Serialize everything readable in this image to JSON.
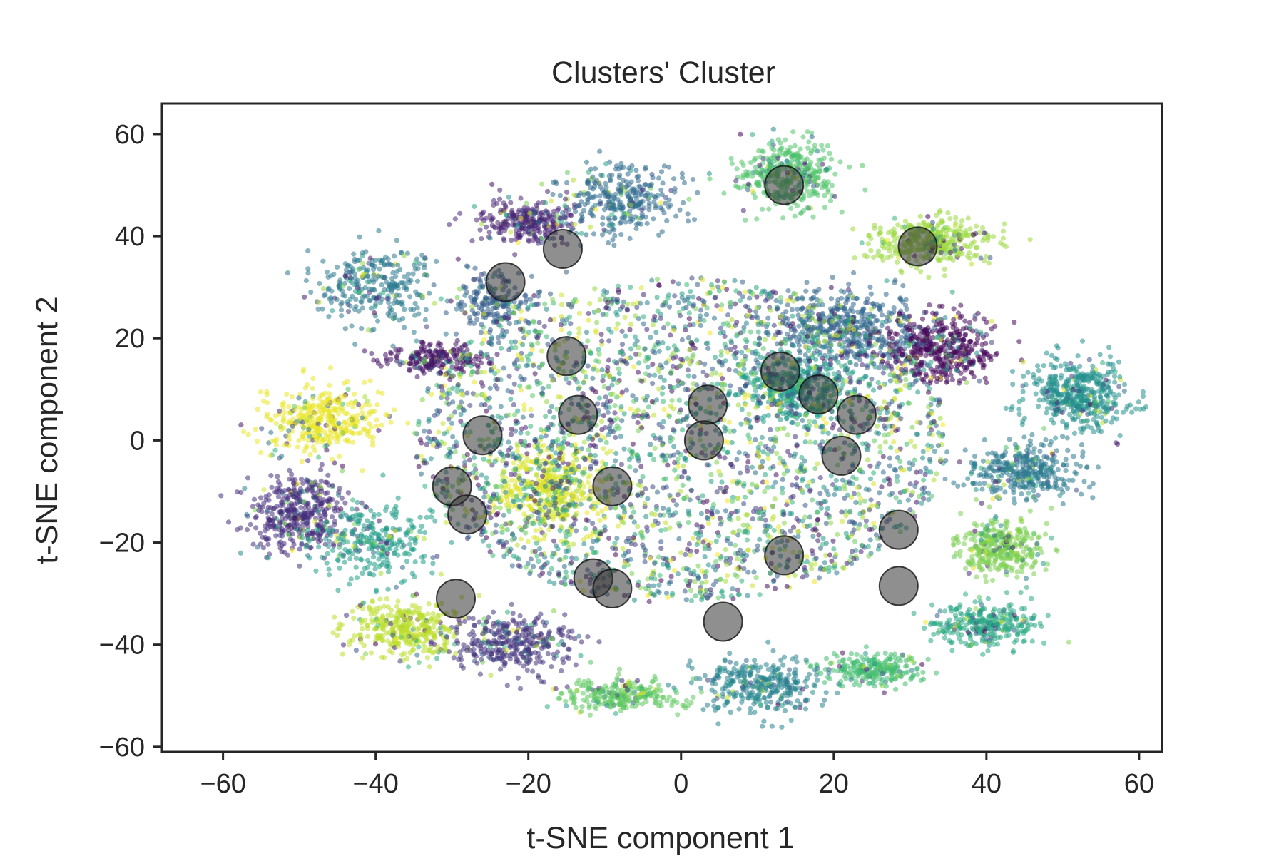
{
  "chart_data": {
    "type": "scatter",
    "title": "Clusters' Cluster",
    "xlabel": "t-SNE component 1",
    "ylabel": "t-SNE component 2",
    "xlim": [
      -68,
      63
    ],
    "ylim": [
      -61,
      66
    ],
    "xticks": [
      -60,
      -40,
      -20,
      0,
      20,
      40,
      60
    ],
    "yticks": [
      -60,
      -40,
      -20,
      0,
      20,
      40,
      60
    ],
    "xtick_labels": [
      "−60",
      "−40",
      "−20",
      "0",
      "20",
      "40",
      "60"
    ],
    "ytick_labels": [
      "−60",
      "−40",
      "−20",
      "0",
      "20",
      "40",
      "60"
    ],
    "grid": false,
    "colormap": "viridis",
    "point_clouds": [
      {
        "cx": -50,
        "cy": -14,
        "rx": 6,
        "ry": 7,
        "t": 0.13,
        "n": 420
      },
      {
        "cx": -47,
        "cy": 4,
        "rx": 7,
        "ry": 6,
        "t": 0.97,
        "n": 380
      },
      {
        "cx": -36,
        "cy": -37,
        "rx": 7,
        "ry": 5,
        "t": 0.9,
        "n": 380
      },
      {
        "cx": -40,
        "cy": 30,
        "rx": 8,
        "ry": 7,
        "t": 0.4,
        "n": 300
      },
      {
        "cx": -20,
        "cy": 43,
        "rx": 6,
        "ry": 4,
        "t": 0.1,
        "n": 280
      },
      {
        "cx": -25,
        "cy": 27,
        "rx": 5,
        "ry": 5,
        "t": 0.3,
        "n": 200
      },
      {
        "cx": -32,
        "cy": 16,
        "rx": 6,
        "ry": 3,
        "t": 0.05,
        "n": 220
      },
      {
        "cx": -17,
        "cy": -10,
        "rx": 6,
        "ry": 8,
        "t": 0.95,
        "n": 450
      },
      {
        "cx": -8,
        "cy": 47,
        "rx": 7,
        "ry": 6,
        "t": 0.35,
        "n": 320
      },
      {
        "cx": 14,
        "cy": 52,
        "rx": 6,
        "ry": 6,
        "t": 0.72,
        "n": 380
      },
      {
        "cx": 33,
        "cy": 39,
        "rx": 7,
        "ry": 4,
        "t": 0.85,
        "n": 380
      },
      {
        "cx": 22,
        "cy": 22,
        "rx": 9,
        "ry": 7,
        "t": 0.33,
        "n": 500
      },
      {
        "cx": 34,
        "cy": 18,
        "rx": 7,
        "ry": 6,
        "t": 0.02,
        "n": 450
      },
      {
        "cx": 52,
        "cy": 9,
        "rx": 6,
        "ry": 6,
        "t": 0.5,
        "n": 450
      },
      {
        "cx": 45,
        "cy": -6,
        "rx": 7,
        "ry": 5,
        "t": 0.4,
        "n": 350
      },
      {
        "cx": 42,
        "cy": -21,
        "rx": 5,
        "ry": 5,
        "t": 0.8,
        "n": 350
      },
      {
        "cx": 40,
        "cy": -36,
        "rx": 6,
        "ry": 4,
        "t": 0.6,
        "n": 300
      },
      {
        "cx": 25,
        "cy": -45,
        "rx": 6,
        "ry": 3,
        "t": 0.7,
        "n": 240
      },
      {
        "cx": 10,
        "cy": -48,
        "rx": 7,
        "ry": 5,
        "t": 0.45,
        "n": 320
      },
      {
        "cx": -8,
        "cy": -50,
        "rx": 7,
        "ry": 3,
        "t": 0.75,
        "n": 260
      },
      {
        "cx": -22,
        "cy": -40,
        "rx": 7,
        "ry": 5,
        "t": 0.15,
        "n": 340
      },
      {
        "cx": -40,
        "cy": -20,
        "rx": 7,
        "ry": 7,
        "t": 0.55,
        "n": 280
      },
      {
        "cx": 15,
        "cy": 10,
        "rx": 7,
        "ry": 6,
        "t": 0.55,
        "n": 400
      },
      {
        "cx": 0,
        "cy": 0,
        "rx": 35,
        "ry": 32,
        "t": -1,
        "n": 3800
      }
    ],
    "centroids": [
      {
        "x": 13.5,
        "y": 50
      },
      {
        "x": 31,
        "y": 38
      },
      {
        "x": -15.5,
        "y": 37.5
      },
      {
        "x": -23,
        "y": 31
      },
      {
        "x": -15,
        "y": 16.5
      },
      {
        "x": 13,
        "y": 13.5
      },
      {
        "x": 18,
        "y": 9
      },
      {
        "x": 23,
        "y": 5
      },
      {
        "x": 3.5,
        "y": 7
      },
      {
        "x": -13.5,
        "y": 5
      },
      {
        "x": -26,
        "y": 1
      },
      {
        "x": 3,
        "y": 0
      },
      {
        "x": 21,
        "y": -3
      },
      {
        "x": -9,
        "y": -9
      },
      {
        "x": -30,
        "y": -9
      },
      {
        "x": -28,
        "y": -14.5
      },
      {
        "x": 28.5,
        "y": -17.5
      },
      {
        "x": 13.5,
        "y": -22.5
      },
      {
        "x": -11.5,
        "y": -27
      },
      {
        "x": -9,
        "y": -29
      },
      {
        "x": 28.5,
        "y": -28.5
      },
      {
        "x": -29.5,
        "y": -31
      },
      {
        "x": 5.5,
        "y": -35.5
      }
    ],
    "centroid_color": "#333333"
  }
}
